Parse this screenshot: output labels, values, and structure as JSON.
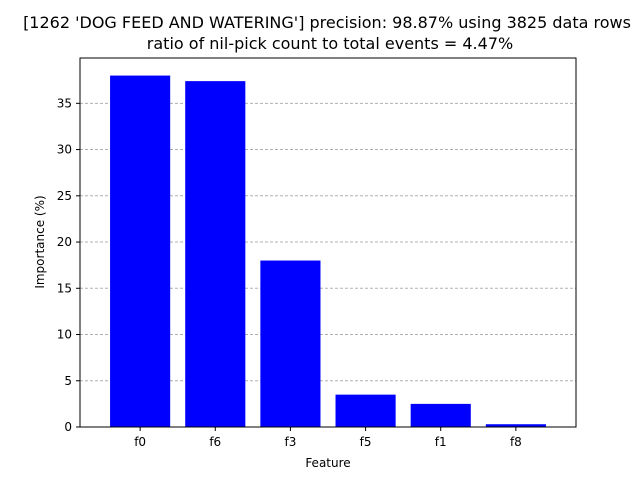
{
  "chart_data": {
    "type": "bar",
    "title_line1": "[1262 'DOG FEED AND WATERING'] precision: 98.87% using 3825 data rows",
    "title_line2": "ratio of nil-pick count to total events = 4.47%",
    "xlabel": "Feature",
    "ylabel": "Importance (%)",
    "categories": [
      "f0",
      "f6",
      "f3",
      "f5",
      "f1",
      "f8"
    ],
    "values": [
      38.0,
      37.4,
      18.0,
      3.5,
      2.5,
      0.3
    ],
    "ylim": [
      0,
      39.9
    ],
    "yticks": [
      "0",
      "5",
      "10",
      "15",
      "20",
      "25",
      "30",
      "35"
    ],
    "grid": "y-dashed",
    "bar_color": "#0000ff",
    "grid_color": "#b0b0b0"
  }
}
